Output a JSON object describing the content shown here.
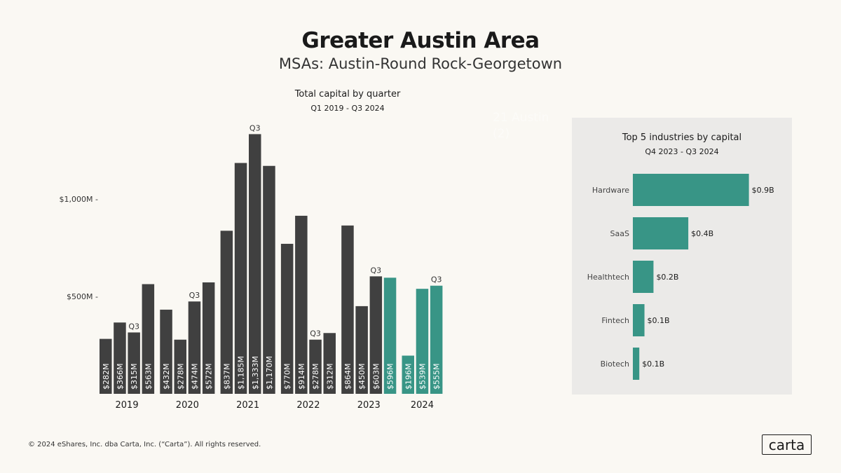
{
  "header": {
    "title": "Greater Austin Area",
    "subtitle": "MSAs: Austin-Round Rock-Georgetown"
  },
  "hidden_text": [
    "21 Austin",
    "(2)"
  ],
  "colors": {
    "background": "#faf8f3",
    "dark_bar": "#404040",
    "teal_bar": "#389586",
    "panel": "#ebeae8"
  },
  "chart_data": [
    {
      "type": "bar",
      "title": "Total capital by quarter",
      "subtitle": "Q1 2019 - Q3 2024",
      "yticks": [
        {
          "value": 500,
          "label": "$500M"
        },
        {
          "value": 1000,
          "label": "$1,000M"
        }
      ],
      "ylim": [
        0,
        1400
      ],
      "unit": "$M",
      "groups": [
        {
          "year": "2019",
          "quarters": [
            {
              "q": "Q1",
              "value": 282,
              "label": "$282M"
            },
            {
              "q": "Q2",
              "value": 366,
              "label": "$366M"
            },
            {
              "q": "Q3",
              "value": 315,
              "label": "$315M"
            },
            {
              "q": "Q4",
              "value": 563,
              "label": "$563M"
            }
          ]
        },
        {
          "year": "2020",
          "quarters": [
            {
              "q": "Q1",
              "value": 432,
              "label": "$432M"
            },
            {
              "q": "Q2",
              "value": 278,
              "label": "$278M"
            },
            {
              "q": "Q3",
              "value": 474,
              "label": "$474M"
            },
            {
              "q": "Q4",
              "value": 572,
              "label": "$572M"
            }
          ]
        },
        {
          "year": "2021",
          "quarters": [
            {
              "q": "Q1",
              "value": 837,
              "label": "$837M"
            },
            {
              "q": "Q2",
              "value": 1185,
              "label": "$1,185M"
            },
            {
              "q": "Q3",
              "value": 1333,
              "label": "$1,333M"
            },
            {
              "q": "Q4",
              "value": 1170,
              "label": "$1,170M"
            }
          ]
        },
        {
          "year": "2022",
          "quarters": [
            {
              "q": "Q1",
              "value": 770,
              "label": "$770M"
            },
            {
              "q": "Q2",
              "value": 914,
              "label": "$914M"
            },
            {
              "q": "Q3",
              "value": 278,
              "label": "$278M"
            },
            {
              "q": "Q4",
              "value": 312,
              "label": "$312M"
            }
          ]
        },
        {
          "year": "2023",
          "quarters": [
            {
              "q": "Q1",
              "value": 864,
              "label": "$864M"
            },
            {
              "q": "Q2",
              "value": 450,
              "label": "$450M"
            },
            {
              "q": "Q3",
              "value": 603,
              "label": "$603M"
            },
            {
              "q": "Q4",
              "value": 596,
              "label": "$596M",
              "highlight": true
            }
          ]
        },
        {
          "year": "2024",
          "quarters": [
            {
              "q": "Q1",
              "value": 196,
              "label": "$196M",
              "highlight": true
            },
            {
              "q": "Q2",
              "value": 539,
              "label": "$539M",
              "highlight": true
            },
            {
              "q": "Q3",
              "value": 555,
              "label": "$555M",
              "highlight": true
            }
          ]
        }
      ],
      "q3_marker": "Q3"
    },
    {
      "type": "bar",
      "orientation": "horizontal",
      "title": "Top 5 industries by capital",
      "subtitle": "Q4 2023 - Q3 2024",
      "unit": "$B",
      "categories": [
        "Hardware",
        "SaaS",
        "Healthtech",
        "Fintech",
        "Biotech"
      ],
      "values": [
        0.9,
        0.43,
        0.16,
        0.09,
        0.05
      ],
      "labels": [
        "$0.9B",
        "$0.4B",
        "$0.2B",
        "$0.1B",
        "$0.1B"
      ]
    }
  ],
  "footer": {
    "copyright": "© 2024 eShares, Inc. dba Carta, Inc. (“Carta”). All rights reserved.",
    "logo": "carta"
  }
}
